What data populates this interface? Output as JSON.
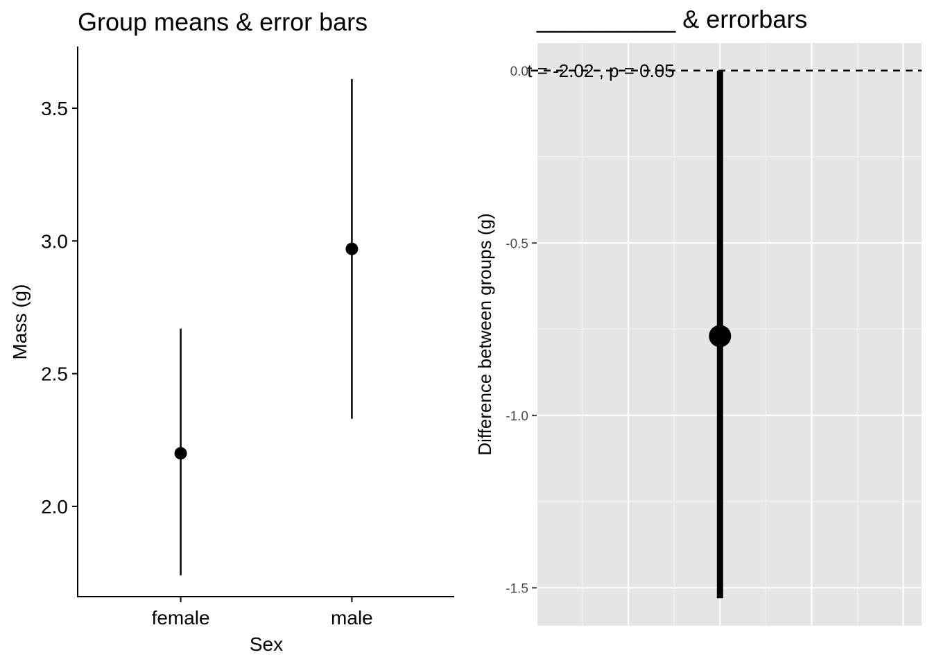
{
  "chart_data": [
    {
      "type": "errorbar",
      "title": "Group means & error bars",
      "xlabel": "Sex",
      "ylabel": "Mass (g)",
      "categories": [
        "female",
        "male"
      ],
      "values": [
        2.2,
        2.97
      ],
      "lower": [
        1.74,
        2.33
      ],
      "upper": [
        2.67,
        3.61
      ],
      "ylim": [
        1.66,
        3.73
      ],
      "yticks": [
        2.0,
        2.5,
        3.0,
        3.5
      ],
      "ytick_labels": [
        "2.0",
        "2.5",
        "3.0",
        "3.5"
      ],
      "grid": false,
      "colors": {
        "marks": "#000000",
        "background": "#ffffff"
      }
    },
    {
      "type": "errorbar",
      "title": "__________ & errorbars",
      "xlabel": "",
      "ylabel": "Difference between groups (g)",
      "x": [
        0
      ],
      "values": [
        -0.77
      ],
      "lower": [
        -1.53
      ],
      "upper": [
        0.0
      ],
      "xlim": [
        -1,
        1.1
      ],
      "ylim": [
        -1.61,
        0.08
      ],
      "yticks": [
        0.0,
        -0.5,
        -1.0,
        -1.5
      ],
      "ytick_labels": [
        "0.0",
        "-0.5",
        "-1.0",
        "-1.5"
      ],
      "reference_line": {
        "y": 0.0,
        "style": "dashed"
      },
      "annotation": {
        "text": "t = -2.02 , p = 0.05"
      },
      "grid": true,
      "colors": {
        "marks": "#000000",
        "panel": "#e5e5e5",
        "grid": "#ffffff",
        "tick_text": "#4d4d4d"
      }
    }
  ]
}
